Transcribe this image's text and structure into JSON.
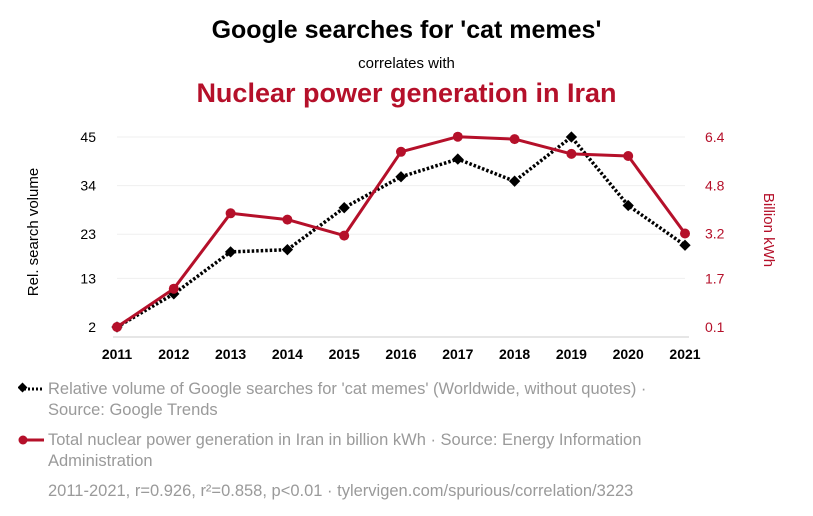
{
  "header": {
    "title": "Google searches for 'cat memes'",
    "subtitle": "correlates with",
    "title2": "Nuclear power generation in Iran"
  },
  "legend": [
    {
      "text": "Relative volume of Google searches for 'cat memes' (Worldwide, without quotes) · Source: Google Trends",
      "color": "#000000"
    },
    {
      "text": "Total nuclear power generation in Iran in billion kWh · Source: Energy Information Administration",
      "color": "#b5102a"
    }
  ],
  "footer": "2011-2021, r=0.926, r²=0.858, p<0.01 · tylervigen.com/spurious/correlation/3223",
  "chart_data": {
    "type": "line",
    "x": [
      "2011",
      "2012",
      "2013",
      "2014",
      "2015",
      "2016",
      "2017",
      "2018",
      "2019",
      "2020",
      "2021"
    ],
    "ylabel_left": "Rel. search volume",
    "ylabel_right": "Billion kWh",
    "yticks_left": [
      "2",
      "13",
      "23",
      "34",
      "45"
    ],
    "yticks_right": [
      "0.1",
      "1.7",
      "3.2",
      "4.8",
      "6.4"
    ],
    "ylim_left": [
      2,
      45
    ],
    "ylim_right": [
      0.1,
      6.4
    ],
    "series": [
      {
        "axis": "left",
        "color": "#000000",
        "style": "dotted",
        "marker": "diamond",
        "values": [
          2,
          9.5,
          19,
          19.5,
          29,
          36,
          40,
          35,
          45,
          29.5,
          20.5
        ]
      },
      {
        "axis": "right",
        "color": "#b5102a",
        "style": "solid",
        "marker": "circle",
        "values": [
          0.1,
          1.37,
          3.87,
          3.66,
          3.13,
          5.91,
          6.41,
          6.33,
          5.84,
          5.77,
          3.2
        ]
      }
    ],
    "grid": true
  }
}
